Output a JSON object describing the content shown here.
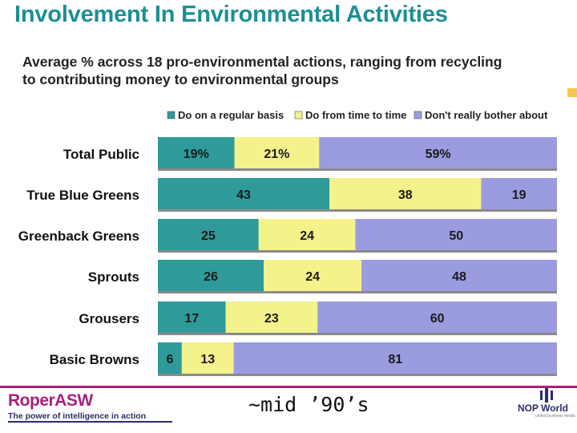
{
  "title": "Involvement In Environmental Activities",
  "chart_data": {
    "type": "bar",
    "orientation": "horizontal",
    "stacked": true,
    "title": "Average % across 18 pro-environmental actions, ranging from recycling to contributing money to environmental groups",
    "categories": [
      "Total Public",
      "True Blue Greens",
      "Greenback Greens",
      "Sprouts",
      "Grousers",
      "Basic Browns"
    ],
    "series": [
      {
        "name": "Do on a regular basis",
        "color": "#2e9a9a",
        "values": [
          19,
          43,
          25,
          26,
          17,
          6
        ],
        "labels": [
          "19%",
          "43",
          "25",
          "26",
          "17",
          "6"
        ]
      },
      {
        "name": "Do from time to time",
        "color": "#f4f28a",
        "values": [
          21,
          38,
          24,
          24,
          23,
          13
        ],
        "labels": [
          "21%",
          "38",
          "24",
          "24",
          "23",
          "13"
        ]
      },
      {
        "name": "Don't really bother about",
        "color": "#9b9be0",
        "values": [
          59,
          19,
          50,
          48,
          60,
          81
        ],
        "labels": [
          "59%",
          "19",
          "50",
          "48",
          "60",
          "81"
        ]
      }
    ],
    "xlim": [
      0,
      100
    ],
    "legend_position": "top"
  },
  "footer": {
    "brand_left": "RoperASW",
    "brand_tagline": "The power of intelligence in action",
    "era_note": "~mid ’90’s",
    "brand_right": "NOP World",
    "brand_right_tagline": "united business media"
  }
}
